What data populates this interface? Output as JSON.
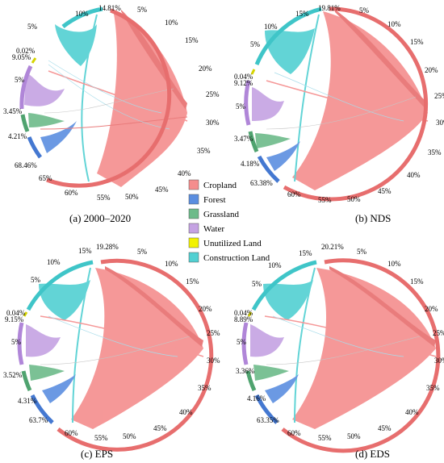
{
  "colors": {
    "Cropland": "#f58d8d",
    "Forest": "#5b8ee0",
    "Grassland": "#6dbb8a",
    "Water": "#c5a3e3",
    "Unutilized Land": "#f2f200",
    "Construction Land": "#52d0d2",
    "ring_construction": "#3fc5c8",
    "ring_cropland": "#e76e6e",
    "ring_forest": "#4478d1",
    "ring_grassland": "#4fa36f",
    "ring_water": "#b086d8",
    "ring_unutilized": "#d6d400"
  },
  "legend": [
    {
      "label": "Cropland",
      "color": "#f58d8d"
    },
    {
      "label": "Forest",
      "color": "#5b8ee0"
    },
    {
      "label": "Grassland",
      "color": "#6dbb8a"
    },
    {
      "label": "Water",
      "color": "#c5a3e3"
    },
    {
      "label": "Unutilized Land",
      "color": "#f2f200"
    },
    {
      "label": "Construction Land",
      "color": "#52d0d2"
    }
  ],
  "chart_data": [
    {
      "type": "chord",
      "caption": "(a) 2000–2020",
      "categories": [
        "Cropland",
        "Forest",
        "Grassland",
        "Water",
        "Unutilized Land",
        "Construction Land"
      ],
      "shares": {
        "Cropland": "68.46%",
        "Forest": "4.21%",
        "Grassland": "3.45%",
        "Water": "9.05%",
        "Unutilized Land": "0.02%",
        "Construction Land": "14.81%"
      },
      "share_values": [
        68.46,
        4.21,
        3.45,
        9.05,
        0.02,
        14.81
      ],
      "ticks": [
        "5%",
        "10%",
        "15%",
        "20%",
        "25%",
        "30%",
        "35%",
        "40%",
        "45%",
        "50%",
        "55%",
        "60%",
        "65%",
        "5%",
        "5%",
        "10%"
      ]
    },
    {
      "type": "chord",
      "caption": "(b) NDS",
      "categories": [
        "Cropland",
        "Forest",
        "Grassland",
        "Water",
        "Unutilized Land",
        "Construction Land"
      ],
      "shares": {
        "Cropland": "63.38%",
        "Forest": "4.18%",
        "Grassland": "3.47%",
        "Water": "9.12%",
        "Unutilized Land": "0.04%",
        "Construction Land": "19.81%"
      },
      "share_values": [
        63.38,
        4.18,
        3.47,
        9.12,
        0.04,
        19.81
      ],
      "ticks": [
        "5%",
        "10%",
        "15%",
        "20%",
        "25%",
        "30%",
        "35%",
        "40%",
        "45%",
        "50%",
        "55%",
        "60%",
        "5%",
        "5%",
        "10%",
        "15%"
      ]
    },
    {
      "type": "chord",
      "caption": "(c) EPS",
      "categories": [
        "Cropland",
        "Forest",
        "Grassland",
        "Water",
        "Unutilized Land",
        "Construction Land"
      ],
      "shares": {
        "Cropland": "63.7%",
        "Forest": "4.31%",
        "Grassland": "3.52%",
        "Water": "9.15%",
        "Unutilized Land": "0.04%",
        "Construction Land": "19.28%"
      },
      "share_values": [
        63.7,
        4.31,
        3.52,
        9.15,
        0.04,
        19.28
      ],
      "ticks": [
        "5%",
        "10%",
        "15%",
        "20%",
        "25%",
        "30%",
        "35%",
        "40%",
        "45%",
        "50%",
        "55%",
        "60%",
        "5%",
        "5%",
        "10%",
        "15%"
      ]
    },
    {
      "type": "chord",
      "caption": "(d) EDS",
      "categories": [
        "Cropland",
        "Forest",
        "Grassland",
        "Water",
        "Unutilized Land",
        "Construction Land"
      ],
      "shares": {
        "Cropland": "63.35%",
        "Forest": "4.16%",
        "Grassland": "3.36%",
        "Water": "8.89%",
        "Unutilized Land": "0.04%",
        "Construction Land": "20.21%"
      },
      "share_values": [
        63.35,
        4.16,
        3.36,
        8.89,
        0.04,
        20.21
      ],
      "ticks": [
        "5%",
        "10%",
        "15%",
        "20%",
        "25%",
        "30%",
        "35%",
        "40%",
        "45%",
        "50%",
        "55%",
        "60%",
        "5%",
        "5%",
        "10%",
        "15%"
      ]
    }
  ]
}
